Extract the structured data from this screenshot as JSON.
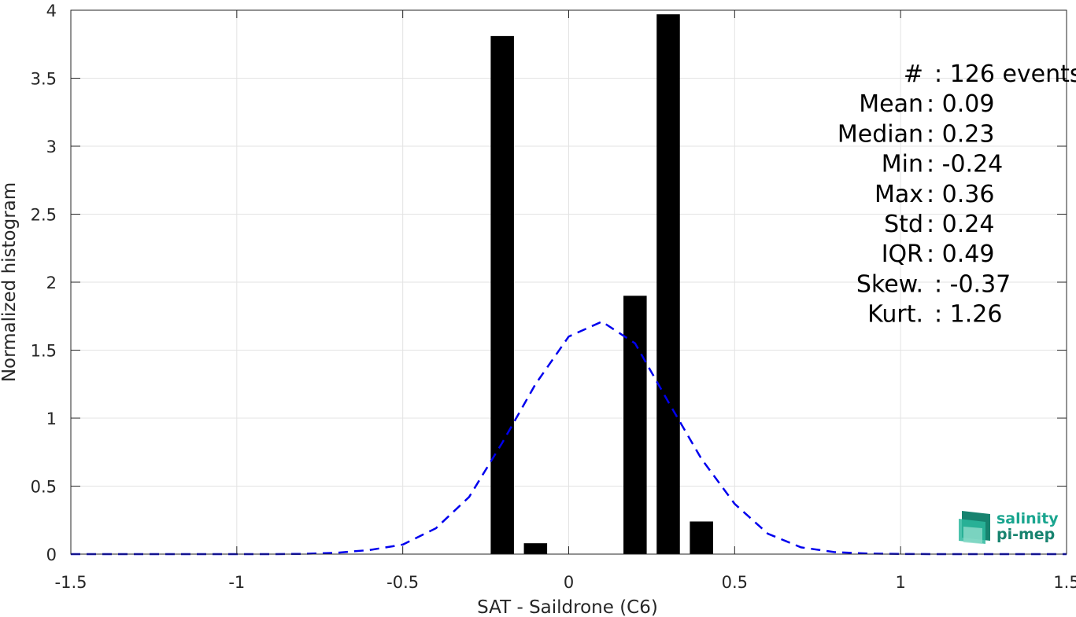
{
  "chart_data": {
    "type": "bar",
    "xlabel": "SAT - Saildrone (C6)",
    "ylabel": "Normalized histogram",
    "xlim": [
      -1.5,
      1.5
    ],
    "ylim": [
      0,
      4
    ],
    "grid": true,
    "x_ticks": [
      "-1.5",
      "-1",
      "-0.5",
      "0",
      "0.5",
      "1",
      "1.5"
    ],
    "y_ticks": [
      "0",
      "0.5",
      "1",
      "1.5",
      "2",
      "2.5",
      "3",
      "3.5",
      "4"
    ],
    "bar_width": 0.07,
    "bars": [
      {
        "x": -0.2,
        "value": 3.81
      },
      {
        "x": -0.1,
        "value": 0.08
      },
      {
        "x": 0.2,
        "value": 1.9
      },
      {
        "x": 0.3,
        "value": 3.97
      },
      {
        "x": 0.4,
        "value": 0.24
      }
    ],
    "fit_curve": {
      "style": "dashed",
      "color": "#0000ee",
      "x": [
        -1.5,
        -1.4,
        -1.3,
        -1.2,
        -1.1,
        -1.0,
        -0.9,
        -0.8,
        -0.7,
        -0.6,
        -0.5,
        -0.4,
        -0.3,
        -0.2,
        -0.1,
        0.0,
        0.1,
        0.2,
        0.3,
        0.4,
        0.5,
        0.6,
        0.7,
        0.8,
        0.9,
        1.0,
        1.1,
        1.2,
        1.3,
        1.4,
        1.5
      ],
      "y": [
        0,
        0,
        0,
        0,
        0,
        0,
        0,
        0.002,
        0.01,
        0.03,
        0.07,
        0.19,
        0.42,
        0.82,
        1.25,
        1.6,
        1.71,
        1.55,
        1.12,
        0.7,
        0.37,
        0.15,
        0.05,
        0.015,
        0.004,
        0.001,
        0,
        0,
        0,
        0,
        0
      ]
    },
    "bar_color": "#000000",
    "annotations": [
      "#  : 126 events",
      "Mean : 0.09",
      "Median : 0.23",
      "Min : -0.24",
      "Max : 0.36",
      "Std : 0.24",
      "IQR : 0.49",
      "Skew. : -0.37",
      "Kurt. : 1.26"
    ]
  },
  "logo": {
    "line1": "salinity",
    "line2": "pi-mep",
    "color": "#1aa58f"
  }
}
